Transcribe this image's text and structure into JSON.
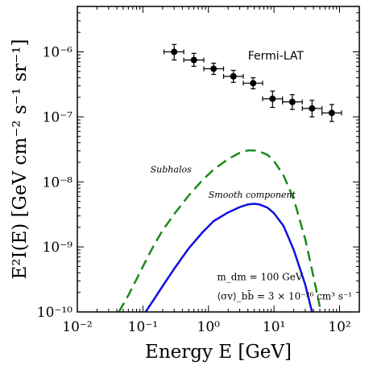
{
  "chart_data": {
    "type": "scatter",
    "xlabel": "Energy E [GeV]",
    "ylabel": "E²I(E) [GeV cm⁻² s⁻¹ sr⁻¹]",
    "xscale": "log",
    "yscale": "log",
    "xlim": [
      0.01,
      200
    ],
    "ylim": [
      1e-10,
      5e-06
    ],
    "x_ticks": [
      0.01,
      0.1,
      1,
      10,
      100
    ],
    "x_tick_labels": [
      "10⁻²",
      "10⁻¹",
      "10⁰",
      "10¹",
      "10²"
    ],
    "y_ticks": [
      1e-10,
      1e-09,
      1e-08,
      1e-07,
      1e-06
    ],
    "y_tick_labels": [
      "10⁻¹⁰",
      "10⁻⁹",
      "10⁻⁸",
      "10⁻⁷",
      "10⁻⁶"
    ],
    "grid": false,
    "series": [
      {
        "name": "Fermi-LAT",
        "kind": "points_with_errorbars",
        "color": "#000000",
        "x": [
          0.3,
          0.6,
          1.2,
          2.4,
          4.8,
          9.5,
          19,
          38,
          76
        ],
        "y": [
          1e-06,
          7.5e-07,
          5.5e-07,
          4.2e-07,
          3.3e-07,
          1.9e-07,
          1.7e-07,
          1.35e-07,
          1.15e-07
        ],
        "x_low": [
          0.21,
          0.42,
          0.85,
          1.7,
          3.4,
          6.7,
          13.5,
          27,
          54
        ],
        "x_high": [
          0.42,
          0.85,
          1.7,
          3.4,
          6.7,
          13.5,
          27,
          54,
          107
        ],
        "y_err_low": [
          2.5e-07,
          1.5e-07,
          1e-07,
          8e-08,
          6e-08,
          5e-08,
          4e-08,
          3.5e-08,
          3e-08
        ],
        "y_err_high": [
          3e-07,
          2e-07,
          1.2e-07,
          1e-07,
          7e-08,
          6e-08,
          5e-08,
          4.5e-08,
          4e-08
        ]
      },
      {
        "name": "Subhalos",
        "kind": "line",
        "style": "dashed",
        "color": "#1a8a1a",
        "x": [
          0.043,
          0.06,
          0.1,
          0.15,
          0.2,
          0.3,
          0.5,
          0.8,
          1.2,
          2,
          3,
          4,
          5,
          6,
          8,
          10,
          14,
          20,
          30,
          40,
          50
        ],
        "y": [
          1e-10,
          1.8e-10,
          5e-10,
          1.1e-09,
          1.8e-09,
          3.2e-09,
          6.2e-09,
          1.05e-08,
          1.55e-08,
          2.25e-08,
          2.8e-08,
          3.05e-08,
          3.05e-08,
          2.95e-08,
          2.6e-08,
          2.1e-08,
          1.25e-08,
          5.5e-09,
          1.3e-09,
          3.5e-10,
          1.2e-10
        ]
      },
      {
        "name": "Smooth component",
        "kind": "line",
        "style": "solid",
        "color": "#1010e0",
        "x": [
          0.11,
          0.15,
          0.2,
          0.3,
          0.5,
          0.8,
          1.2,
          2,
          3,
          4,
          5,
          6,
          8,
          10,
          14,
          20,
          30,
          38
        ],
        "y": [
          1e-10,
          1.6e-10,
          2.5e-10,
          4.6e-10,
          9.5e-10,
          1.65e-09,
          2.5e-09,
          3.4e-09,
          4.1e-09,
          4.5e-09,
          4.6e-09,
          4.5e-09,
          4e-09,
          3.3e-09,
          2.1e-09,
          9e-10,
          2.6e-10,
          1e-10
        ]
      }
    ],
    "annotations": {
      "fermi": "Fermi-LAT",
      "subhalos": "Subhalos",
      "smooth": "Smooth component",
      "mass_line": "m_dm = 100 GeV",
      "sigma_line": "⟨σv⟩_bb̄ = 3 × 10⁻²⁶ cm³ s⁻¹"
    }
  }
}
